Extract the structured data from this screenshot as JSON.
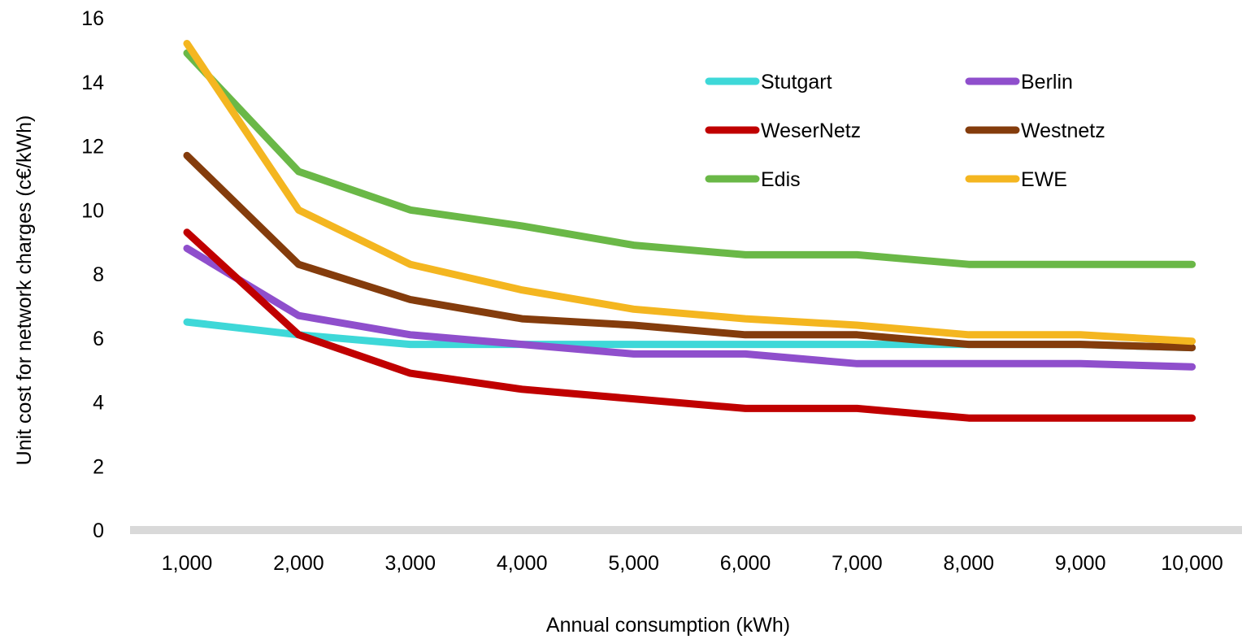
{
  "chart_data": {
    "type": "line",
    "xlabel": "Annual consumption (kWh)",
    "ylabel": "Unit cost for network charges (c€/kWh)",
    "categories": [
      "1,000",
      "2,000",
      "3,000",
      "4,000",
      "5,000",
      "6,000",
      "7,000",
      "8,000",
      "9,000",
      "10,000"
    ],
    "yticks": [
      "0",
      "2",
      "4",
      "6",
      "8",
      "10",
      "12",
      "14",
      "16"
    ],
    "ylim": [
      0,
      16
    ],
    "grid": false,
    "legend_position": "top-right",
    "series": [
      {
        "name": "Stutgart",
        "color": "#3ed8d8",
        "values": [
          6.5,
          6.1,
          5.8,
          5.8,
          5.8,
          5.8,
          5.8,
          5.8,
          5.8,
          5.7
        ]
      },
      {
        "name": "Berlin",
        "color": "#8f4fcc",
        "values": [
          8.8,
          6.7,
          6.1,
          5.8,
          5.5,
          5.5,
          5.2,
          5.2,
          5.2,
          5.1
        ]
      },
      {
        "name": "WeserNetz",
        "color": "#c00000",
        "values": [
          9.3,
          6.1,
          4.9,
          4.4,
          4.1,
          3.8,
          3.8,
          3.5,
          3.5,
          3.5
        ]
      },
      {
        "name": "Westnetz",
        "color": "#843c0c",
        "values": [
          11.7,
          8.3,
          7.2,
          6.6,
          6.4,
          6.1,
          6.1,
          5.8,
          5.8,
          5.7
        ]
      },
      {
        "name": "Edis",
        "color": "#6ab847",
        "values": [
          14.9,
          11.2,
          10.0,
          9.5,
          8.9,
          8.6,
          8.6,
          8.3,
          8.3,
          8.3
        ]
      },
      {
        "name": "EWE",
        "color": "#f4b620",
        "values": [
          15.2,
          10.0,
          8.3,
          7.5,
          6.9,
          6.6,
          6.4,
          6.1,
          6.1,
          5.9
        ]
      }
    ]
  }
}
